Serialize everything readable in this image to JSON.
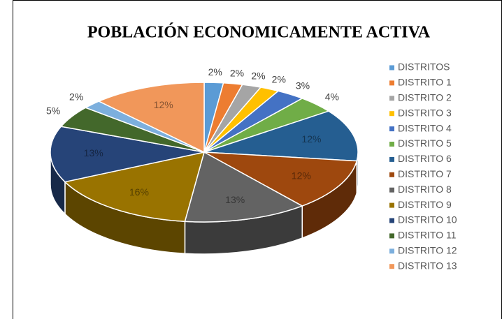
{
  "chart_data": {
    "type": "pie",
    "title": "POBLACIÓN ECONOMICAMENTE ACTIVA",
    "categories": [
      "DISTRITOS",
      "DISTRITO 1",
      "DISTRITO 2",
      "DISTRITO 3",
      "DISTRITO 4",
      "DISTRITO 5",
      "DISTRITO 6",
      "DISTRITO 7",
      "DISTRITO 8",
      "DISTRITO 9",
      "DISTRITO 10",
      "DISTRITO 11",
      "DISTRITO 12",
      "DISTRITO 13"
    ],
    "values": [
      2,
      2,
      2,
      2,
      3,
      4,
      12,
      12,
      13,
      16,
      13,
      5,
      2,
      12
    ],
    "value_labels": [
      "2%",
      "2%",
      "2%",
      "2%",
      "3%",
      "4%",
      "12%",
      "12%",
      "13%",
      "16%",
      "13%",
      "5%",
      "2%",
      "12%"
    ],
    "colors": [
      "#5b9bd5",
      "#ed7d31",
      "#a5a5a5",
      "#ffc000",
      "#4472c4",
      "#70ad47",
      "#255e91",
      "#9e480e",
      "#636363",
      "#997300",
      "#264478",
      "#43682b",
      "#7cafdd",
      "#f1975a"
    ],
    "legend": "right"
  }
}
